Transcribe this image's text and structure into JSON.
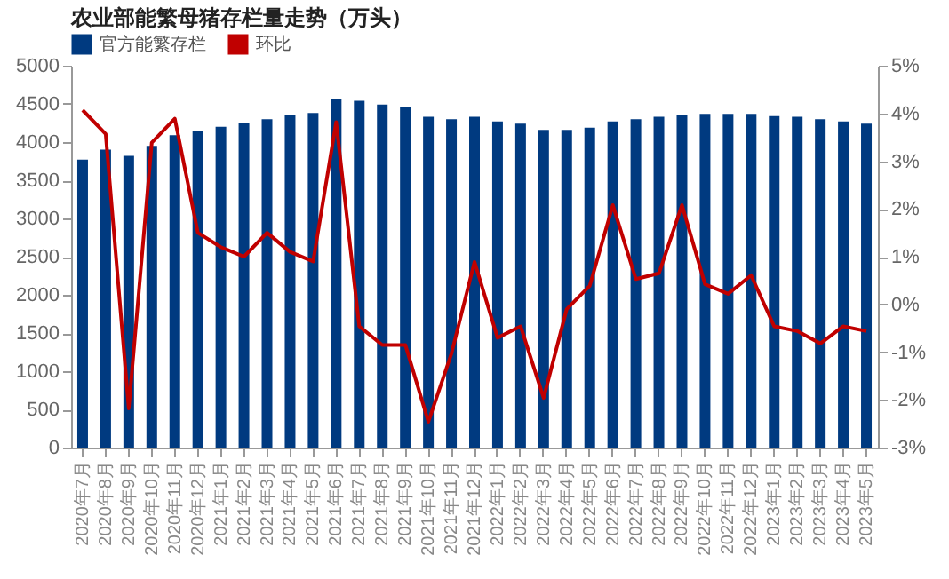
{
  "chart_data": {
    "type": "bar",
    "title": "农业部能繁母猪存栏量走势（万头）",
    "categories": [
      "2020年7月",
      "2020年8月",
      "2020年9月",
      "2020年10月",
      "2020年11月",
      "2020年12月",
      "2021年1月",
      "2021年2月",
      "2021年3月",
      "2021年4月",
      "2021年5月",
      "2021年6月",
      "2021年7月",
      "2021年8月",
      "2021年9月",
      "2021年10月",
      "2021年11月",
      "2021年12月",
      "2022年1月",
      "2022年2月",
      "2022年3月",
      "2022年4月",
      "2022年5月",
      "2022年6月",
      "2022年7月",
      "2022年8月",
      "2022年9月",
      "2022年10月",
      "2022年11月",
      "2022年12月",
      "2023年1月",
      "2023年2月",
      "2023年3月",
      "2023年4月",
      "2023年5月"
    ],
    "series": [
      {
        "name": "官方能繁存栏",
        "color": "#003a80",
        "values": [
          3770,
          3900,
          3820,
          3950,
          4090,
          4140,
          4200,
          4250,
          4300,
          4350,
          4380,
          4560,
          4540,
          4490,
          4460,
          4330,
          4300,
          4330,
          4270,
          4240,
          4160,
          4160,
          4190,
          4270,
          4300,
          4330,
          4350,
          4370,
          4370,
          4370,
          4340,
          4330,
          4300,
          4270,
          4240
        ]
      },
      {
        "name": "环比",
        "type": "line",
        "axis": "y2",
        "color": "#c00000",
        "values": [
          4.07,
          3.57,
          -2.18,
          3.39,
          3.89,
          1.5,
          1.2,
          1.0,
          1.5,
          1.1,
          0.9,
          3.82,
          -0.46,
          -0.85,
          -0.85,
          -2.46,
          -1.03,
          0.89,
          -0.7,
          -0.46,
          -1.96,
          -0.1,
          0.39,
          2.08,
          0.53,
          0.65,
          2.08,
          0.42,
          0.22,
          0.61,
          -0.46,
          -0.56,
          -0.82,
          -0.46,
          -0.56
        ]
      }
    ],
    "ylim": [
      0,
      5000
    ],
    "yticks": [
      0,
      500,
      1000,
      1500,
      2000,
      2500,
      3000,
      3500,
      4000,
      4500,
      5000
    ],
    "y2lim": [
      -3,
      5
    ],
    "y2ticks": [
      {
        "value": -3,
        "label": "-3%"
      },
      {
        "value": -2,
        "label": "-2%"
      },
      {
        "value": -1,
        "label": "-1%"
      },
      {
        "value": 0,
        "label": "0%"
      },
      {
        "value": 1,
        "label": "1%"
      },
      {
        "value": 2,
        "label": "2%"
      },
      {
        "value": 3,
        "label": "3%"
      },
      {
        "value": 4,
        "label": "4%"
      },
      {
        "value": 5,
        "label": "5%"
      }
    ],
    "legend": "top",
    "grid": false
  }
}
